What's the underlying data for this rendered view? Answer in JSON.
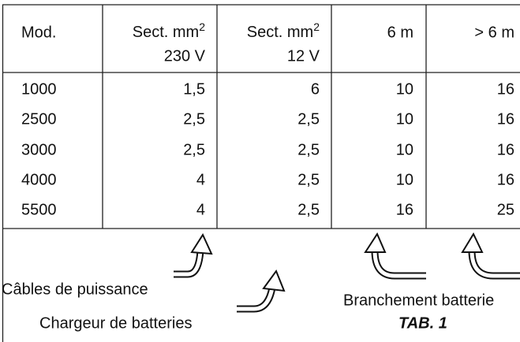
{
  "table": {
    "header": [
      "Mod.",
      {
        "line1": "Sect. mm",
        "sup": "2",
        "line2": "230 V"
      },
      {
        "line1": "Sect. mm",
        "sup": "2",
        "line2": "12 V"
      },
      "6 m",
      "> 6 m"
    ],
    "rows": [
      [
        "1000",
        "1,5",
        "6",
        "10",
        "16"
      ],
      [
        "2500",
        "2,5",
        "2,5",
        "10",
        "16"
      ],
      [
        "3000",
        "2,5",
        "2,5",
        "10",
        "16"
      ],
      [
        "4000",
        "4",
        "2,5",
        "10",
        "16"
      ],
      [
        "5500",
        "4",
        "2,5",
        "16",
        "25"
      ]
    ]
  },
  "captions": {
    "power_cables": "Câbles de puissance",
    "charger": "Chargeur de batteries",
    "battery": "Branchement batterie",
    "tab": "TAB. 1"
  }
}
